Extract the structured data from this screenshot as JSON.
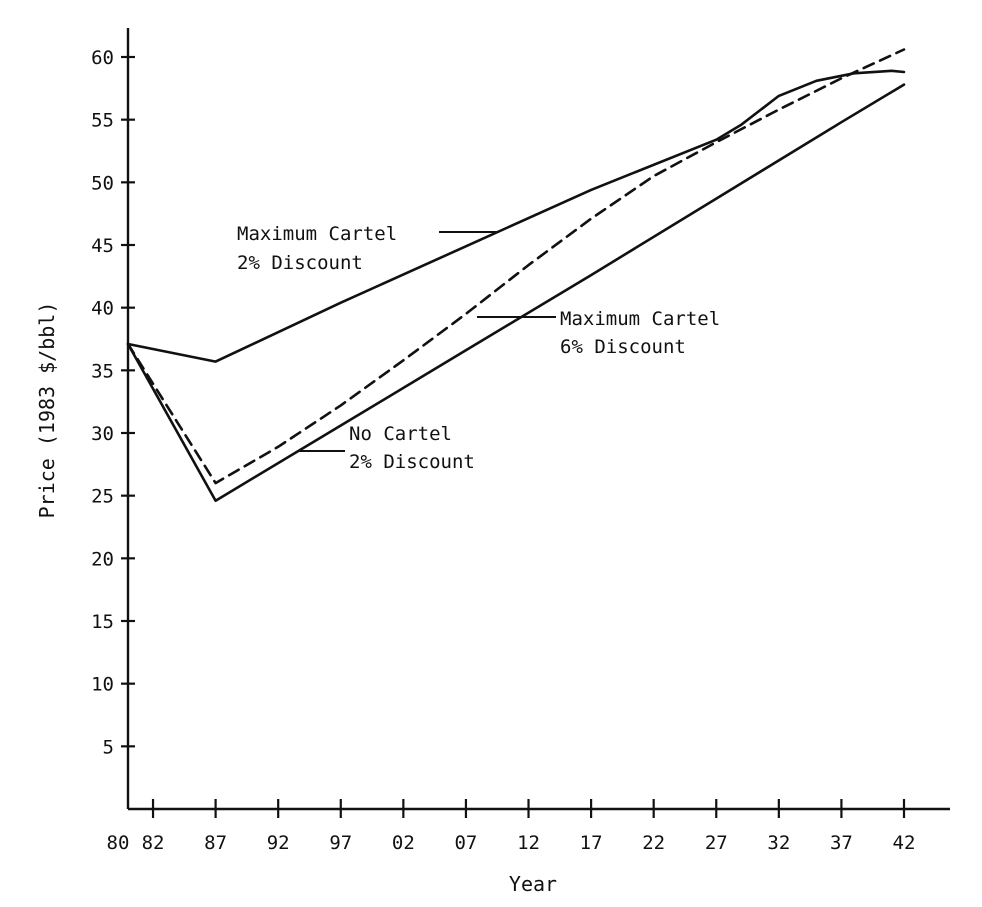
{
  "chart_data": {
    "type": "line",
    "title": "",
    "xlabel": "Year",
    "ylabel": "Price (1983 $/bbl)",
    "xlim": [
      1980,
      2045
    ],
    "ylim": [
      0,
      62
    ],
    "x_ticks": [
      {
        "value": 1980,
        "label": "80"
      },
      {
        "value": 1982,
        "label": "82"
      },
      {
        "value": 1987,
        "label": "87"
      },
      {
        "value": 1992,
        "label": "92"
      },
      {
        "value": 1997,
        "label": "97"
      },
      {
        "value": 2002,
        "label": "02"
      },
      {
        "value": 2007,
        "label": "07"
      },
      {
        "value": 2012,
        "label": "12"
      },
      {
        "value": 2017,
        "label": "17"
      },
      {
        "value": 2022,
        "label": "22"
      },
      {
        "value": 2027,
        "label": "27"
      },
      {
        "value": 2032,
        "label": "32"
      },
      {
        "value": 2037,
        "label": "37"
      },
      {
        "value": 2042,
        "label": "42"
      }
    ],
    "y_ticks": [
      {
        "value": 5,
        "label": "5"
      },
      {
        "value": 10,
        "label": "10"
      },
      {
        "value": 15,
        "label": "15"
      },
      {
        "value": 20,
        "label": "20"
      },
      {
        "value": 25,
        "label": "25"
      },
      {
        "value": 30,
        "label": "30"
      },
      {
        "value": 35,
        "label": "35"
      },
      {
        "value": 40,
        "label": "40"
      },
      {
        "value": 45,
        "label": "45"
      },
      {
        "value": 50,
        "label": "50"
      },
      {
        "value": 55,
        "label": "55"
      },
      {
        "value": 60,
        "label": "60"
      }
    ],
    "grid": false,
    "legend": "none",
    "series": [
      {
        "name": "Maximum Cartel 2% Discount",
        "style": "solid",
        "x": [
          1980,
          1987,
          1997,
          2007,
          2017,
          2027,
          2029,
          2032,
          2035,
          2038,
          2041,
          2042
        ],
        "y": [
          37.1,
          35.7,
          40.4,
          44.9,
          49.4,
          53.4,
          54.6,
          56.9,
          58.1,
          58.7,
          58.9,
          58.8
        ]
      },
      {
        "name": "Maximum Cartel 6% Discount",
        "style": "dashed",
        "x": [
          1980,
          1987,
          1992,
          1997,
          2002,
          2007,
          2012,
          2017,
          2022,
          2027,
          2032,
          2037,
          2042
        ],
        "y": [
          37.1,
          26.0,
          28.9,
          32.2,
          35.8,
          39.5,
          43.4,
          47.1,
          50.5,
          53.2,
          55.8,
          58.3,
          60.6
        ]
      },
      {
        "name": "No Cartel 2% Discount",
        "style": "solid",
        "x": [
          1980,
          1987,
          1997,
          2007,
          2017,
          2027,
          2037,
          2042
        ],
        "y": [
          37.1,
          24.6,
          30.6,
          36.6,
          42.6,
          48.7,
          54.8,
          57.8
        ]
      }
    ],
    "annotations": [
      {
        "id": "max2",
        "lines": [
          "Maximum Cartel",
          "2% Discount"
        ],
        "series": "Maximum Cartel 2% Discount"
      },
      {
        "id": "max6",
        "lines": [
          "Maximum Cartel",
          "6% Discount"
        ],
        "series": "Maximum Cartel 6% Discount"
      },
      {
        "id": "nocartel",
        "lines": [
          "No Cartel",
          "2% Discount"
        ],
        "series": "No Cartel 2% Discount"
      }
    ]
  }
}
